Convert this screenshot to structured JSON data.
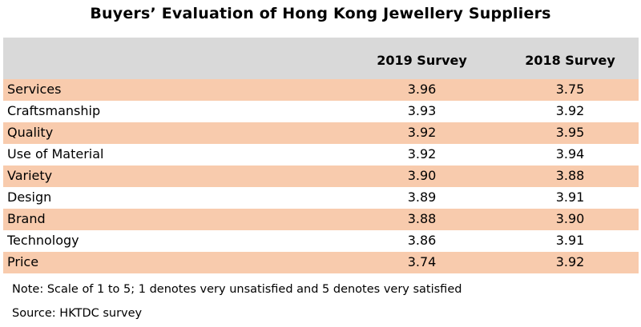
{
  "chart_data": {
    "type": "table",
    "title": "Buyers’ Evaluation of Hong Kong Jewellery Suppliers",
    "columns": [
      "",
      "2019 Survey",
      "2018 Survey"
    ],
    "rows": [
      {
        "label": "Services",
        "v2019": "3.96",
        "v2018": "3.75"
      },
      {
        "label": "Craftsmanship",
        "v2019": "3.93",
        "v2018": "3.92"
      },
      {
        "label": "Quality",
        "v2019": "3.92",
        "v2018": "3.95"
      },
      {
        "label": "Use of Material",
        "v2019": "3.92",
        "v2018": "3.94"
      },
      {
        "label": "Variety",
        "v2019": "3.90",
        "v2018": "3.88"
      },
      {
        "label": "Design",
        "v2019": "3.89",
        "v2018": "3.91"
      },
      {
        "label": "Brand",
        "v2019": "3.88",
        "v2018": "3.90"
      },
      {
        "label": "Technology",
        "v2019": "3.86",
        "v2018": "3.91"
      },
      {
        "label": "Price",
        "v2019": "3.74",
        "v2018": "3.92"
      }
    ],
    "note": "Note: Scale of 1 to 5; 1 denotes very unsatisfied and 5 denotes very satisfied",
    "source": "Source: HKTDC survey"
  },
  "colors": {
    "header_bg": "#d9d9d9",
    "shade_bg": "#f8cbad"
  }
}
